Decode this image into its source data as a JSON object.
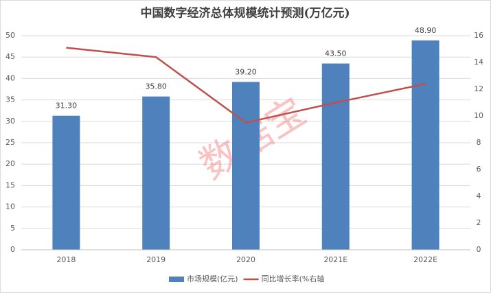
{
  "chart_data": {
    "type": "bar",
    "title": "中国数字经济总体规模统计预测(万亿元)",
    "watermark": "数据宝",
    "categories": [
      "2018",
      "2019",
      "2020",
      "2021E",
      "2022E"
    ],
    "series": [
      {
        "name": "市场规模(亿元)",
        "type": "bar",
        "color": "#4f81bd",
        "values": [
          31.3,
          35.8,
          39.2,
          43.5,
          48.9
        ],
        "value_labels": [
          "31.30",
          "35.80",
          "39.20",
          "43.50",
          "48.90"
        ]
      },
      {
        "name": "同比增长率(%右轴",
        "type": "line",
        "axis": "y2",
        "color": "#c0504d",
        "values": [
          15.1,
          14.4,
          9.5,
          11.0,
          12.4
        ]
      }
    ],
    "ylim": [
      0,
      50
    ],
    "yticks": [
      0,
      5,
      10,
      15,
      20,
      25,
      30,
      35,
      40,
      45,
      50
    ],
    "y2lim": [
      0,
      16
    ],
    "y2ticks": [
      0,
      2,
      4,
      6,
      8,
      10,
      12,
      14,
      16
    ],
    "grid": true,
    "legend": "bottom"
  }
}
